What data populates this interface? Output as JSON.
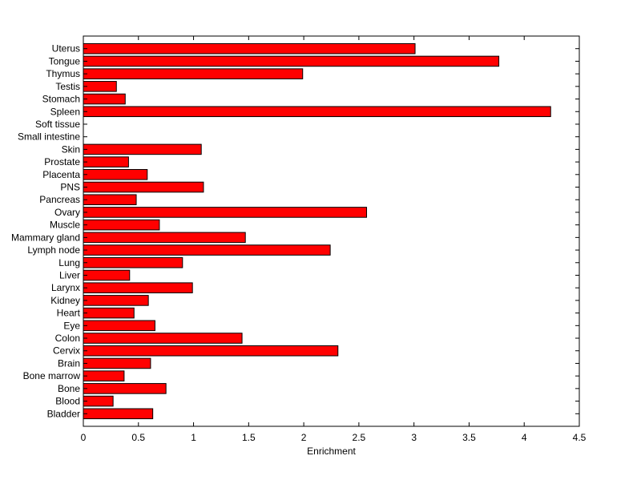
{
  "chart_data": {
    "type": "bar",
    "orientation": "horizontal",
    "categories": [
      "Bladder",
      "Blood",
      "Bone",
      "Bone marrow",
      "Brain",
      "Cervix",
      "Colon",
      "Eye",
      "Heart",
      "Kidney",
      "Larynx",
      "Liver",
      "Lung",
      "Lymph node",
      "Mammary gland",
      "Muscle",
      "Ovary",
      "Pancreas",
      "PNS",
      "Placenta",
      "Prostate",
      "Skin",
      "Small intestine",
      "Soft tissue",
      "Spleen",
      "Stomach",
      "Testis",
      "Thymus",
      "Tongue",
      "Uterus"
    ],
    "values": [
      0.63,
      0.27,
      0.75,
      0.37,
      0.61,
      2.31,
      1.44,
      0.65,
      0.46,
      0.59,
      0.99,
      0.42,
      0.9,
      2.24,
      1.47,
      0.69,
      2.57,
      0.48,
      1.09,
      0.58,
      0.41,
      1.07,
      0.0,
      0.0,
      4.24,
      0.38,
      0.3,
      1.99,
      3.77,
      3.01
    ],
    "title": "",
    "xlabel": "Enrichment",
    "ylabel": "",
    "xlim": [
      0,
      4.5
    ],
    "xticks": [
      "0",
      "0.5",
      "1",
      "1.5",
      "2",
      "2.5",
      "3",
      "3.5",
      "4",
      "4.5"
    ],
    "grid": false,
    "bar_color": "#ff0000",
    "edge_color": "#000000"
  }
}
